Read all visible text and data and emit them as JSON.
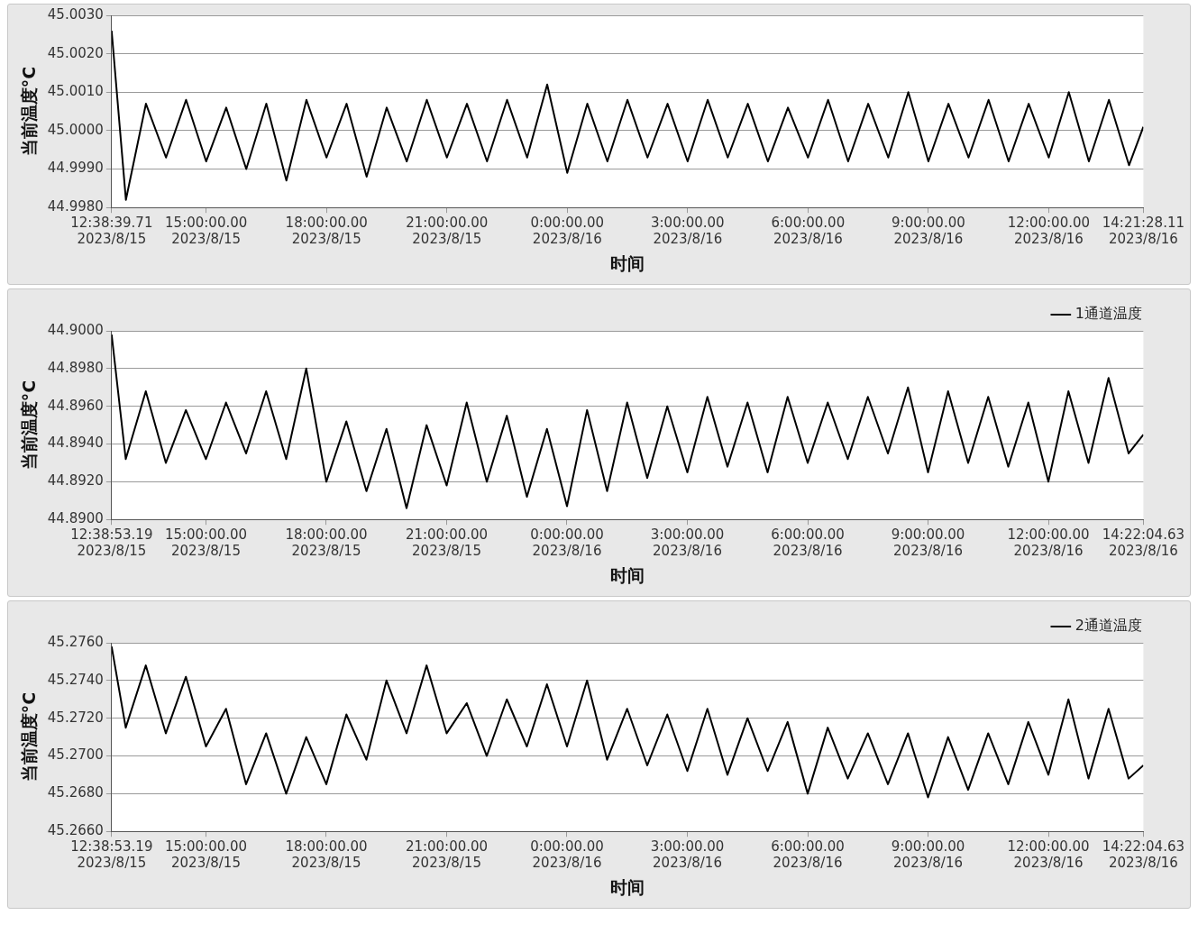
{
  "chart_data": [
    {
      "type": "line",
      "xlabel": "时间",
      "ylabel": "当前温度°C",
      "grid": "y",
      "legend": false,
      "x": [
        "2023-08-15T12:38:39.71",
        "2023-08-15T13:00",
        "2023-08-15T13:30",
        "2023-08-15T14:00",
        "2023-08-15T14:30",
        "2023-08-15T15:00",
        "2023-08-15T15:30",
        "2023-08-15T16:00",
        "2023-08-15T16:30",
        "2023-08-15T17:00",
        "2023-08-15T17:30",
        "2023-08-15T18:00",
        "2023-08-15T18:30",
        "2023-08-15T19:00",
        "2023-08-15T19:30",
        "2023-08-15T20:00",
        "2023-08-15T20:30",
        "2023-08-15T21:00",
        "2023-08-15T21:30",
        "2023-08-15T22:00",
        "2023-08-15T22:30",
        "2023-08-15T23:00",
        "2023-08-15T23:30",
        "2023-08-16T00:00",
        "2023-08-16T00:30",
        "2023-08-16T01:00",
        "2023-08-16T01:30",
        "2023-08-16T02:00",
        "2023-08-16T02:30",
        "2023-08-16T03:00",
        "2023-08-16T03:30",
        "2023-08-16T04:00",
        "2023-08-16T04:30",
        "2023-08-16T05:00",
        "2023-08-16T05:30",
        "2023-08-16T06:00",
        "2023-08-16T06:30",
        "2023-08-16T07:00",
        "2023-08-16T07:30",
        "2023-08-16T08:00",
        "2023-08-16T08:30",
        "2023-08-16T09:00",
        "2023-08-16T09:30",
        "2023-08-16T10:00",
        "2023-08-16T10:30",
        "2023-08-16T11:00",
        "2023-08-16T11:30",
        "2023-08-16T12:00",
        "2023-08-16T12:30",
        "2023-08-16T13:00",
        "2023-08-16T13:30",
        "2023-08-16T14:00",
        "2023-08-16T14:21:28.11"
      ],
      "xlim": [
        "2023-08-15T12:38:39.71",
        "2023-08-16T14:21:28.11"
      ],
      "xticks": [
        {
          "value": "2023-08-15T12:38:39.71",
          "label": "12:38:39.71\n2023/8/15"
        },
        {
          "value": "2023-08-15T15:00",
          "label": "15:00:00.00\n2023/8/15"
        },
        {
          "value": "2023-08-15T18:00",
          "label": "18:00:00.00\n2023/8/15"
        },
        {
          "value": "2023-08-15T21:00",
          "label": "21:00:00.00\n2023/8/15"
        },
        {
          "value": "2023-08-16T00:00",
          "label": "0:00:00.00\n2023/8/16"
        },
        {
          "value": "2023-08-16T03:00",
          "label": "3:00:00.00\n2023/8/16"
        },
        {
          "value": "2023-08-16T06:00",
          "label": "6:00:00.00\n2023/8/16"
        },
        {
          "value": "2023-08-16T09:00",
          "label": "9:00:00.00\n2023/8/16"
        },
        {
          "value": "2023-08-16T12:00",
          "label": "12:00:00.00\n2023/8/16"
        },
        {
          "value": "2023-08-16T14:21:28.11",
          "label": "14:21:28.11\n2023/8/16"
        }
      ],
      "ylim": [
        44.998,
        45.003
      ],
      "yticks": [
        {
          "value": 44.998,
          "label": "44.9980"
        },
        {
          "value": 44.999,
          "label": "44.9990"
        },
        {
          "value": 45.0,
          "label": "45.0000"
        },
        {
          "value": 45.001,
          "label": "45.0010"
        },
        {
          "value": 45.002,
          "label": "45.0020"
        },
        {
          "value": 45.003,
          "label": "45.0030"
        }
      ],
      "series": [
        {
          "color": "#000000",
          "values": [
            45.0026,
            44.9982,
            45.0007,
            44.9993,
            45.0008,
            44.9992,
            45.0006,
            44.999,
            45.0007,
            44.9987,
            45.0008,
            44.9993,
            45.0007,
            44.9988,
            45.0006,
            44.9992,
            45.0008,
            44.9993,
            45.0007,
            44.9992,
            45.0008,
            44.9993,
            45.0012,
            44.9989,
            45.0007,
            44.9992,
            45.0008,
            44.9993,
            45.0007,
            44.9992,
            45.0008,
            44.9993,
            45.0007,
            44.9992,
            45.0006,
            44.9993,
            45.0008,
            44.9992,
            45.0007,
            44.9993,
            45.001,
            44.9992,
            45.0007,
            44.9993,
            45.0008,
            44.9992,
            45.0007,
            44.9993,
            45.001,
            44.9992,
            45.0008,
            44.9991,
            45.0001
          ]
        }
      ]
    },
    {
      "type": "line",
      "xlabel": "时间",
      "ylabel": "当前温度°C",
      "grid": "y",
      "legend": "top right",
      "x": [
        "2023-08-15T12:38:53.19",
        "2023-08-15T13:00",
        "2023-08-15T13:30",
        "2023-08-15T14:00",
        "2023-08-15T14:30",
        "2023-08-15T15:00",
        "2023-08-15T15:30",
        "2023-08-15T16:00",
        "2023-08-15T16:30",
        "2023-08-15T17:00",
        "2023-08-15T17:30",
        "2023-08-15T18:00",
        "2023-08-15T18:30",
        "2023-08-15T19:00",
        "2023-08-15T19:30",
        "2023-08-15T20:00",
        "2023-08-15T20:30",
        "2023-08-15T21:00",
        "2023-08-15T21:30",
        "2023-08-15T22:00",
        "2023-08-15T22:30",
        "2023-08-15T23:00",
        "2023-08-15T23:30",
        "2023-08-16T00:00",
        "2023-08-16T00:30",
        "2023-08-16T01:00",
        "2023-08-16T01:30",
        "2023-08-16T02:00",
        "2023-08-16T02:30",
        "2023-08-16T03:00",
        "2023-08-16T03:30",
        "2023-08-16T04:00",
        "2023-08-16T04:30",
        "2023-08-16T05:00",
        "2023-08-16T05:30",
        "2023-08-16T06:00",
        "2023-08-16T06:30",
        "2023-08-16T07:00",
        "2023-08-16T07:30",
        "2023-08-16T08:00",
        "2023-08-16T08:30",
        "2023-08-16T09:00",
        "2023-08-16T09:30",
        "2023-08-16T10:00",
        "2023-08-16T10:30",
        "2023-08-16T11:00",
        "2023-08-16T11:30",
        "2023-08-16T12:00",
        "2023-08-16T12:30",
        "2023-08-16T13:00",
        "2023-08-16T13:30",
        "2023-08-16T14:00",
        "2023-08-16T14:22:04.63"
      ],
      "xlim": [
        "2023-08-15T12:38:53.19",
        "2023-08-16T14:22:04.63"
      ],
      "xticks": [
        {
          "value": "2023-08-15T12:38:53.19",
          "label": "12:38:53.19\n2023/8/15"
        },
        {
          "value": "2023-08-15T15:00",
          "label": "15:00:00.00\n2023/8/15"
        },
        {
          "value": "2023-08-15T18:00",
          "label": "18:00:00.00\n2023/8/15"
        },
        {
          "value": "2023-08-15T21:00",
          "label": "21:00:00.00\n2023/8/15"
        },
        {
          "value": "2023-08-16T00:00",
          "label": "0:00:00.00\n2023/8/16"
        },
        {
          "value": "2023-08-16T03:00",
          "label": "3:00:00.00\n2023/8/16"
        },
        {
          "value": "2023-08-16T06:00",
          "label": "6:00:00.00\n2023/8/16"
        },
        {
          "value": "2023-08-16T09:00",
          "label": "9:00:00.00\n2023/8/16"
        },
        {
          "value": "2023-08-16T12:00",
          "label": "12:00:00.00\n2023/8/16"
        },
        {
          "value": "2023-08-16T14:22:04.63",
          "label": "14:22:04.63\n2023/8/16"
        }
      ],
      "ylim": [
        44.89,
        44.9
      ],
      "yticks": [
        {
          "value": 44.89,
          "label": "44.8900"
        },
        {
          "value": 44.892,
          "label": "44.8920"
        },
        {
          "value": 44.894,
          "label": "44.8940"
        },
        {
          "value": 44.896,
          "label": "44.8960"
        },
        {
          "value": 44.898,
          "label": "44.8980"
        },
        {
          "value": 44.9,
          "label": "44.9000"
        }
      ],
      "series": [
        {
          "name": "1通道温度",
          "color": "#000000",
          "values": [
            44.8998,
            44.8932,
            44.8968,
            44.893,
            44.8958,
            44.8932,
            44.8962,
            44.8935,
            44.8968,
            44.8932,
            44.898,
            44.892,
            44.8952,
            44.8915,
            44.8948,
            44.8906,
            44.895,
            44.8918,
            44.8962,
            44.892,
            44.8955,
            44.8912,
            44.8948,
            44.8907,
            44.8958,
            44.8915,
            44.8962,
            44.8922,
            44.896,
            44.8925,
            44.8965,
            44.8928,
            44.8962,
            44.8925,
            44.8965,
            44.893,
            44.8962,
            44.8932,
            44.8965,
            44.8935,
            44.897,
            44.8925,
            44.8968,
            44.893,
            44.8965,
            44.8928,
            44.8962,
            44.892,
            44.8968,
            44.893,
            44.8975,
            44.8935,
            44.8945
          ]
        }
      ]
    },
    {
      "type": "line",
      "xlabel": "时间",
      "ylabel": "当前温度°C",
      "grid": "y",
      "legend": "top right",
      "x": [
        "2023-08-15T12:38:53.19",
        "2023-08-15T13:00",
        "2023-08-15T13:30",
        "2023-08-15T14:00",
        "2023-08-15T14:30",
        "2023-08-15T15:00",
        "2023-08-15T15:30",
        "2023-08-15T16:00",
        "2023-08-15T16:30",
        "2023-08-15T17:00",
        "2023-08-15T17:30",
        "2023-08-15T18:00",
        "2023-08-15T18:30",
        "2023-08-15T19:00",
        "2023-08-15T19:30",
        "2023-08-15T20:00",
        "2023-08-15T20:30",
        "2023-08-15T21:00",
        "2023-08-15T21:30",
        "2023-08-15T22:00",
        "2023-08-15T22:30",
        "2023-08-15T23:00",
        "2023-08-15T23:30",
        "2023-08-16T00:00",
        "2023-08-16T00:30",
        "2023-08-16T01:00",
        "2023-08-16T01:30",
        "2023-08-16T02:00",
        "2023-08-16T02:30",
        "2023-08-16T03:00",
        "2023-08-16T03:30",
        "2023-08-16T04:00",
        "2023-08-16T04:30",
        "2023-08-16T05:00",
        "2023-08-16T05:30",
        "2023-08-16T06:00",
        "2023-08-16T06:30",
        "2023-08-16T07:00",
        "2023-08-16T07:30",
        "2023-08-16T08:00",
        "2023-08-16T08:30",
        "2023-08-16T09:00",
        "2023-08-16T09:30",
        "2023-08-16T10:00",
        "2023-08-16T10:30",
        "2023-08-16T11:00",
        "2023-08-16T11:30",
        "2023-08-16T12:00",
        "2023-08-16T12:30",
        "2023-08-16T13:00",
        "2023-08-16T13:30",
        "2023-08-16T14:00",
        "2023-08-16T14:22:04.63"
      ],
      "xlim": [
        "2023-08-15T12:38:53.19",
        "2023-08-16T14:22:04.63"
      ],
      "xticks": [
        {
          "value": "2023-08-15T12:38:53.19",
          "label": "12:38:53.19\n2023/8/15"
        },
        {
          "value": "2023-08-15T15:00",
          "label": "15:00:00.00\n2023/8/15"
        },
        {
          "value": "2023-08-15T18:00",
          "label": "18:00:00.00\n2023/8/15"
        },
        {
          "value": "2023-08-15T21:00",
          "label": "21:00:00.00\n2023/8/15"
        },
        {
          "value": "2023-08-16T00:00",
          "label": "0:00:00.00\n2023/8/16"
        },
        {
          "value": "2023-08-16T03:00",
          "label": "3:00:00.00\n2023/8/16"
        },
        {
          "value": "2023-08-16T06:00",
          "label": "6:00:00.00\n2023/8/16"
        },
        {
          "value": "2023-08-16T09:00",
          "label": "9:00:00.00\n2023/8/16"
        },
        {
          "value": "2023-08-16T12:00",
          "label": "12:00:00.00\n2023/8/16"
        },
        {
          "value": "2023-08-16T14:22:04.63",
          "label": "14:22:04.63\n2023/8/16"
        }
      ],
      "ylim": [
        45.266,
        45.276
      ],
      "yticks": [
        {
          "value": 45.266,
          "label": "45.2660"
        },
        {
          "value": 45.268,
          "label": "45.2680"
        },
        {
          "value": 45.27,
          "label": "45.2700"
        },
        {
          "value": 45.272,
          "label": "45.2720"
        },
        {
          "value": 45.274,
          "label": "45.2740"
        },
        {
          "value": 45.276,
          "label": "45.2760"
        }
      ],
      "series": [
        {
          "name": "2通道温度",
          "color": "#000000",
          "values": [
            45.2758,
            45.2715,
            45.2748,
            45.2712,
            45.2742,
            45.2705,
            45.2725,
            45.2685,
            45.2712,
            45.268,
            45.271,
            45.2685,
            45.2722,
            45.2698,
            45.274,
            45.2712,
            45.2748,
            45.2712,
            45.2728,
            45.27,
            45.273,
            45.2705,
            45.2738,
            45.2705,
            45.274,
            45.2698,
            45.2725,
            45.2695,
            45.2722,
            45.2692,
            45.2725,
            45.269,
            45.272,
            45.2692,
            45.2718,
            45.268,
            45.2715,
            45.2688,
            45.2712,
            45.2685,
            45.2712,
            45.2678,
            45.271,
            45.2682,
            45.2712,
            45.2685,
            45.2718,
            45.269,
            45.273,
            45.2688,
            45.2725,
            45.2688,
            45.2695
          ]
        }
      ]
    }
  ]
}
